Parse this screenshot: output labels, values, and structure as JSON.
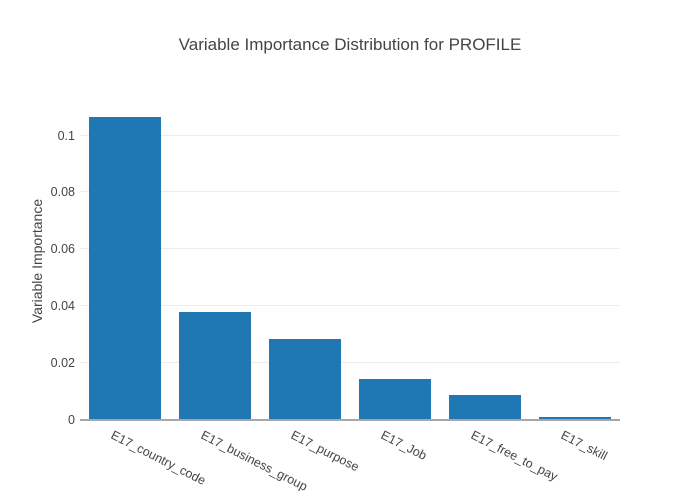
{
  "chart_data": {
    "type": "bar",
    "title": "Variable Importance Distribution for PROFILE",
    "categories": [
      "E17_country_code",
      "E17_business_group",
      "E17_purpose",
      "E17_Job",
      "E17_free_to_pay",
      "E17_skill"
    ],
    "values": [
      0.1065,
      0.0379,
      0.0284,
      0.0143,
      0.0087,
      0.0012
    ],
    "xlabel": "",
    "ylabel": "Variable Importance",
    "ylim": [
      0,
      0.1125
    ],
    "yticks": [
      0,
      0.02,
      0.04,
      0.06,
      0.08,
      0.1
    ],
    "grid": "horizontal",
    "legend": "none",
    "bar_color": "#1f77b4",
    "grid_color": "#ececec",
    "axis_line_color": "#a7a7a7",
    "text_color": "#444444",
    "xtick_angle_deg": 27
  }
}
